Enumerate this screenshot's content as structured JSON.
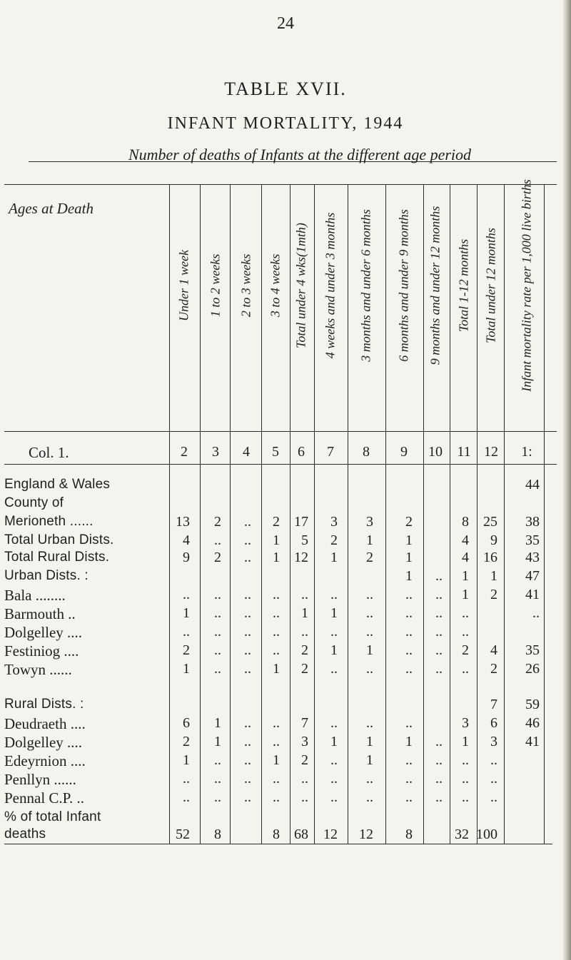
{
  "page_number": "24",
  "title": "TABLE XVII.",
  "subtitle": "INFANT MORTALITY, 1944",
  "caption": "Number of deaths of Infants at the different age period",
  "header": {
    "ages_label": "Ages at Death",
    "col1_label": "Col. 1.",
    "columns": [
      {
        "label": "Under 1 week",
        "num": "2"
      },
      {
        "label": "1 to 2 weeks",
        "num": "3"
      },
      {
        "label": "2 to 3 weeks",
        "num": "4"
      },
      {
        "label": "3 to 4 weeks",
        "num": "5"
      },
      {
        "label": "Total under 4 wks(1mth)",
        "num": "6"
      },
      {
        "label": "4 weeks and under 3 months",
        "num": "7"
      },
      {
        "label": "3 months and under 6 months",
        "num": "8"
      },
      {
        "label": "6 months and under 9 months",
        "num": "9"
      },
      {
        "label": "9 months and under 12 months",
        "num": "10"
      },
      {
        "label": "Total 1-12 months",
        "num": "11"
      },
      {
        "label": "Total under 12 months",
        "num": "12"
      },
      {
        "label": "Infant mortality rate per 1,000 live births",
        "num": "1:"
      }
    ]
  },
  "rows": [
    {
      "label": "England & Wales",
      "bold": true,
      "cells": [
        "",
        "",
        "",
        "",
        "",
        "",
        "",
        "",
        "",
        "",
        "",
        "44"
      ]
    },
    {
      "label": "County of",
      "bold": true,
      "cells": [
        "",
        "",
        "",
        "",
        "",
        "",
        "",
        "",
        "",
        "",
        "",
        ""
      ]
    },
    {
      "label": "Merioneth ......",
      "bold": true,
      "cells": [
        "13",
        "2",
        "..",
        "2",
        "17",
        "3",
        "3",
        "2",
        "",
        "8",
        "25",
        "38"
      ]
    },
    {
      "label": "Total Urban Dists.",
      "bold": true,
      "cells": [
        "4",
        "..",
        "..",
        "1",
        "5",
        "2",
        "1",
        "1",
        "",
        "4",
        "9",
        "35"
      ]
    },
    {
      "label": "Total Rural Dists.",
      "bold": true,
      "cells": [
        "9",
        "2",
        "..",
        "1",
        "12",
        "1",
        "2",
        "1",
        "",
        "4",
        "16",
        "43"
      ]
    },
    {
      "label": "Urban Dists. :",
      "bold": true,
      "cells": [
        "",
        "",
        "",
        "",
        "",
        "",
        "",
        "1",
        "..",
        "1",
        "1",
        "47"
      ]
    },
    {
      "label": "Bala ........",
      "bold": false,
      "cells": [
        "..",
        "..",
        "..",
        "..",
        "..",
        "..",
        "..",
        "..",
        "..",
        "1",
        "2",
        "41"
      ]
    },
    {
      "label": "Barmouth ..",
      "bold": false,
      "cells": [
        "1",
        "..",
        "..",
        "..",
        "1",
        "1",
        "..",
        "..",
        "..",
        "..",
        "",
        ".."
      ]
    },
    {
      "label": "Dolgelley ....",
      "bold": false,
      "cells": [
        "..",
        "..",
        "..",
        "..",
        "..",
        "..",
        "..",
        "..",
        "..",
        "..",
        "",
        ""
      ]
    },
    {
      "label": "Festiniog ....",
      "bold": false,
      "cells": [
        "2",
        "..",
        "..",
        "..",
        "2",
        "1",
        "1",
        "..",
        "..",
        "2",
        "4",
        "35"
      ]
    },
    {
      "label": "Towyn ......",
      "bold": false,
      "cells": [
        "1",
        "..",
        "..",
        "1",
        "2",
        "..",
        "..",
        "..",
        "..",
        "..",
        "2",
        "26"
      ]
    },
    {
      "label": "Rural Dists. :",
      "bold": true,
      "cells": [
        "",
        "",
        "",
        "",
        "",
        "",
        "",
        "",
        "",
        "",
        "7",
        "59"
      ]
    },
    {
      "label": "Deudraeth ....",
      "bold": false,
      "cells": [
        "6",
        "1",
        "..",
        "..",
        "7",
        "..",
        "..",
        "..",
        "",
        "3",
        "6",
        "46"
      ]
    },
    {
      "label": "Dolgelley ....",
      "bold": false,
      "cells": [
        "2",
        "1",
        "..",
        "..",
        "3",
        "1",
        "1",
        "1",
        "..",
        "1",
        "3",
        "41"
      ]
    },
    {
      "label": "Edeyrnion ....",
      "bold": false,
      "cells": [
        "1",
        "..",
        "..",
        "1",
        "2",
        "..",
        "1",
        "..",
        "..",
        "..",
        "..",
        ""
      ]
    },
    {
      "label": "Penllyn ......",
      "bold": false,
      "cells": [
        "..",
        "..",
        "..",
        "..",
        "..",
        "..",
        "..",
        "..",
        "..",
        "..",
        "..",
        ""
      ]
    },
    {
      "label": "Pennal C.P. ..",
      "bold": false,
      "cells": [
        "..",
        "..",
        "..",
        "..",
        "..",
        "..",
        "..",
        "..",
        "..",
        "..",
        "..",
        ""
      ]
    },
    {
      "label": "% of total Infant",
      "bold": true,
      "cells": [
        "",
        "",
        "",
        "",
        "",
        "",
        "",
        "",
        "",
        "",
        "",
        ""
      ]
    },
    {
      "label": "deaths",
      "bold": true,
      "cells": [
        "52",
        "8",
        "",
        "8",
        "68",
        "12",
        "12",
        "8",
        "",
        "32",
        "100",
        ""
      ]
    }
  ]
}
